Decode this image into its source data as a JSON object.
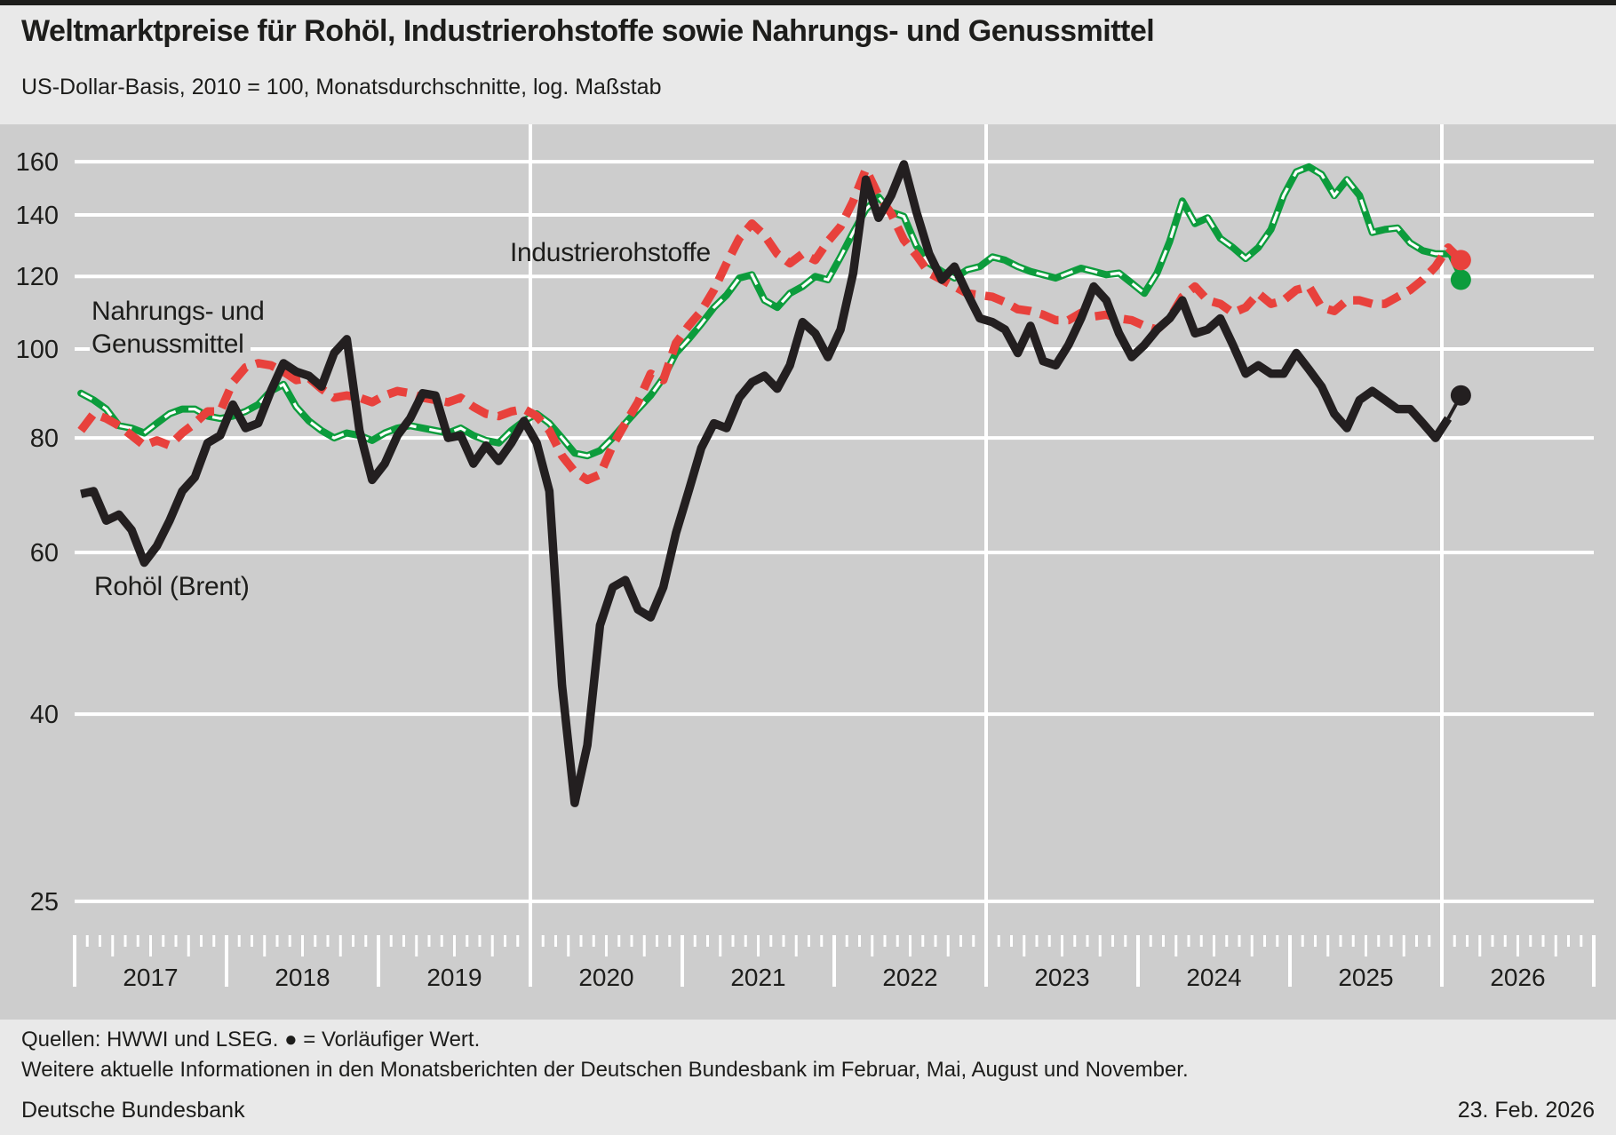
{
  "chart_data": {
    "type": "line",
    "title": "Weltmarktpreise für Rohöl, Industrierohstoffe sowie Nahrungs- und Genussmittel",
    "subtitle": "US-Dollar-Basis, 2010 = 100, Monatsdurchschnitte, log. Maßstab",
    "frequency": "monthly",
    "x_start": "2017-01",
    "x_end": "2026-02",
    "y_axis": {
      "scale": "log",
      "ticks": [
        160,
        140,
        120,
        100,
        80,
        60,
        40,
        25
      ],
      "ylim": [
        23,
        170
      ]
    },
    "x_axis": {
      "years": [
        2017,
        2018,
        2019,
        2020,
        2021,
        2022,
        2023,
        2024,
        2025,
        2026
      ],
      "gridline_years": [
        2020,
        2023,
        2026
      ],
      "minor_ticks": "monthly",
      "medium_ticks": "quarterly"
    },
    "grid": {
      "color": "#ffffff",
      "plot_background": "#cdcdcd"
    },
    "legend_position": "labels-inside-plot",
    "preliminary_marker": "dot",
    "series": [
      {
        "id": "industrial",
        "name": "Industrierohstoffe",
        "label_lines": [
          "Industrierohstoffe"
        ],
        "color": "#0c9c3c",
        "line_style": "solid-with-white-dash",
        "last_value_preliminary": true,
        "values": [
          89.5,
          88,
          86,
          82.5,
          82,
          81,
          83,
          85,
          86,
          86,
          84.5,
          84,
          84.5,
          85.5,
          87,
          90,
          91.5,
          86.5,
          83.5,
          81.5,
          80,
          81,
          80.5,
          79.5,
          81,
          82,
          82.5,
          82,
          81.5,
          81,
          82,
          80.5,
          79.5,
          79,
          81.5,
          83.5,
          85,
          83,
          80,
          77,
          76.5,
          77.5,
          80,
          83,
          86,
          89,
          93,
          99,
          102.5,
          106.5,
          111,
          114.5,
          119.5,
          120.5,
          113,
          111,
          115,
          117,
          120,
          119,
          126,
          134,
          142,
          146.5,
          141,
          139.5,
          129.5,
          124,
          121.5,
          119.5,
          122,
          123,
          126,
          125,
          123,
          121.5,
          120.5,
          119.5,
          121,
          122.5,
          121.5,
          120.5,
          121,
          118,
          115,
          121,
          131,
          145,
          137,
          139,
          132,
          129,
          125.5,
          129,
          135,
          147,
          156,
          158,
          155,
          147,
          153,
          147,
          134,
          135,
          135.5,
          130.5,
          128,
          127,
          127,
          119
        ]
      },
      {
        "id": "food",
        "name": "Nahrungs- und Genussmittel",
        "label_lines": [
          "Nahrungs- und",
          "Genussmittel"
        ],
        "color": "#e8413c",
        "line_style": "dashed",
        "last_value_preliminary": true,
        "values": [
          81.5,
          85,
          84,
          82.5,
          80.5,
          78.5,
          79.5,
          78.5,
          81,
          83,
          85.5,
          85.5,
          92,
          95.5,
          96.5,
          96,
          94.5,
          92.5,
          93,
          90.5,
          88.5,
          89,
          88.5,
          87.5,
          89,
          90,
          89.5,
          88.5,
          88,
          87.5,
          88.5,
          86.5,
          85,
          84.5,
          85.5,
          86,
          84.5,
          81.5,
          76.5,
          73.5,
          72,
          73,
          78.5,
          83,
          87.5,
          94,
          92.5,
          101.5,
          106,
          110,
          116,
          124,
          132,
          137,
          133,
          127,
          124,
          127,
          125,
          131,
          136,
          145,
          157,
          147,
          140.5,
          131.5,
          126.5,
          121,
          119,
          117,
          115,
          114.5,
          114,
          112.5,
          110.5,
          110,
          109,
          107.5,
          107.5,
          109.5,
          108.5,
          109,
          108,
          107.5,
          106,
          105,
          108,
          114,
          117,
          113,
          112,
          109.5,
          111,
          115,
          112,
          113,
          116,
          117,
          111,
          110,
          113,
          113,
          112,
          112,
          114,
          116,
          119,
          123,
          129,
          125
        ]
      },
      {
        "id": "oil",
        "name": "Rohöl (Brent)",
        "label_lines": [
          "Rohöl (Brent)"
        ],
        "color": "#231f20",
        "line_style": "solid",
        "last_value_preliminary": true,
        "values": [
          69.5,
          70,
          65,
          66,
          63.5,
          58.5,
          61,
          65,
          70,
          72.5,
          79,
          80.5,
          87,
          82,
          83,
          90,
          96.5,
          94.5,
          93.5,
          91,
          99,
          102.5,
          81.5,
          72,
          75,
          80.5,
          84,
          89.5,
          89,
          80,
          80.5,
          75,
          78.5,
          75.5,
          79,
          83.5,
          79,
          70,
          43,
          32,
          37,
          50,
          55,
          56,
          52,
          51,
          55,
          63,
          70,
          78,
          83,
          82,
          88.5,
          92,
          93.5,
          90.5,
          96,
          107,
          104,
          98,
          105,
          121,
          153,
          139,
          147,
          159,
          141,
          127,
          119,
          123,
          115,
          108,
          107,
          105,
          99,
          106,
          97,
          96,
          101,
          108,
          117,
          113,
          104,
          98,
          101,
          105,
          108,
          113,
          104,
          105,
          108,
          101,
          94,
          96,
          94,
          94,
          99,
          95,
          91,
          85,
          82,
          88,
          90,
          88,
          86,
          86,
          83,
          80,
          84,
          89
        ]
      }
    ]
  },
  "footer": {
    "source_note": "Quellen: HWWI und LSEG. ● = Vorläufiger Wert.",
    "info_note": "Weitere aktuelle Informationen in den Monatsberichten der Deutschen Bundesbank im Februar, Mai, August und November.",
    "brand": "Deutsche Bundesbank",
    "date": "23. Feb. 2026"
  }
}
